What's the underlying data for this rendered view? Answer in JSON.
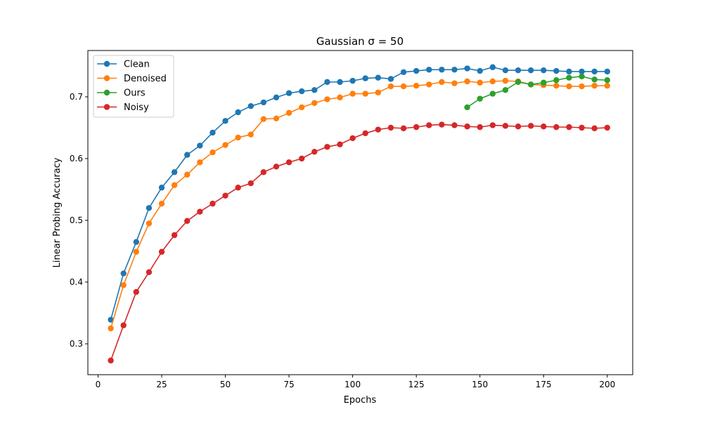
{
  "chart_data": {
    "type": "line",
    "title": "Gaussian σ = 50",
    "xlabel": "Epochs",
    "ylabel": "Linear Probing Accuracy",
    "xlim": [
      -4,
      210
    ],
    "ylim": [
      0.25,
      0.775
    ],
    "xticks": [
      0,
      25,
      50,
      75,
      100,
      125,
      150,
      175,
      200
    ],
    "yticks": [
      0.3,
      0.4,
      0.5,
      0.6,
      0.7
    ],
    "grid": false,
    "legend_position": "top-left",
    "series": [
      {
        "name": "Clean",
        "color": "#1f77b4",
        "x": [
          5,
          10,
          15,
          20,
          25,
          30,
          35,
          40,
          45,
          50,
          55,
          60,
          65,
          70,
          75,
          80,
          85,
          90,
          95,
          100,
          105,
          110,
          115,
          120,
          125,
          130,
          135,
          140,
          145,
          150,
          155,
          160,
          165,
          170,
          175,
          180,
          185,
          190,
          195,
          200
        ],
        "values": [
          0.339,
          0.414,
          0.465,
          0.52,
          0.553,
          0.578,
          0.606,
          0.621,
          0.642,
          0.661,
          0.675,
          0.685,
          0.691,
          0.699,
          0.706,
          0.709,
          0.711,
          0.724,
          0.724,
          0.726,
          0.73,
          0.731,
          0.729,
          0.74,
          0.742,
          0.744,
          0.744,
          0.744,
          0.746,
          0.742,
          0.748,
          0.743,
          0.743,
          0.743,
          0.743,
          0.742,
          0.741,
          0.741,
          0.741,
          0.741
        ]
      },
      {
        "name": "Denoised",
        "color": "#ff7f0e",
        "x": [
          5,
          10,
          15,
          20,
          25,
          30,
          35,
          40,
          45,
          50,
          55,
          60,
          65,
          70,
          75,
          80,
          85,
          90,
          95,
          100,
          105,
          110,
          115,
          120,
          125,
          130,
          135,
          140,
          145,
          150,
          155,
          160,
          165,
          170,
          175,
          180,
          185,
          190,
          195,
          200
        ],
        "values": [
          0.325,
          0.395,
          0.449,
          0.495,
          0.527,
          0.557,
          0.574,
          0.594,
          0.61,
          0.622,
          0.634,
          0.639,
          0.664,
          0.665,
          0.674,
          0.683,
          0.69,
          0.696,
          0.699,
          0.705,
          0.705,
          0.707,
          0.717,
          0.717,
          0.718,
          0.72,
          0.724,
          0.722,
          0.725,
          0.723,
          0.725,
          0.726,
          0.725,
          0.72,
          0.719,
          0.718,
          0.717,
          0.717,
          0.718,
          0.718
        ]
      },
      {
        "name": "Ours",
        "color": "#2ca02c",
        "x": [
          145,
          150,
          155,
          160,
          165,
          170,
          175,
          180,
          185,
          190,
          195,
          200
        ],
        "values": [
          0.683,
          0.697,
          0.705,
          0.711,
          0.724,
          0.72,
          0.723,
          0.727,
          0.731,
          0.733,
          0.728,
          0.727
        ]
      },
      {
        "name": "Noisy",
        "color": "#d62728",
        "x": [
          5,
          10,
          15,
          20,
          25,
          30,
          35,
          40,
          45,
          50,
          55,
          60,
          65,
          70,
          75,
          80,
          85,
          90,
          95,
          100,
          105,
          110,
          115,
          120,
          125,
          130,
          135,
          140,
          145,
          150,
          155,
          160,
          165,
          170,
          175,
          180,
          185,
          190,
          195,
          200
        ],
        "values": [
          0.273,
          0.33,
          0.384,
          0.416,
          0.449,
          0.476,
          0.499,
          0.514,
          0.527,
          0.54,
          0.553,
          0.56,
          0.578,
          0.587,
          0.594,
          0.6,
          0.611,
          0.619,
          0.623,
          0.633,
          0.641,
          0.647,
          0.65,
          0.649,
          0.651,
          0.654,
          0.655,
          0.654,
          0.652,
          0.651,
          0.654,
          0.653,
          0.652,
          0.653,
          0.652,
          0.651,
          0.651,
          0.65,
          0.649,
          0.65
        ]
      }
    ]
  }
}
